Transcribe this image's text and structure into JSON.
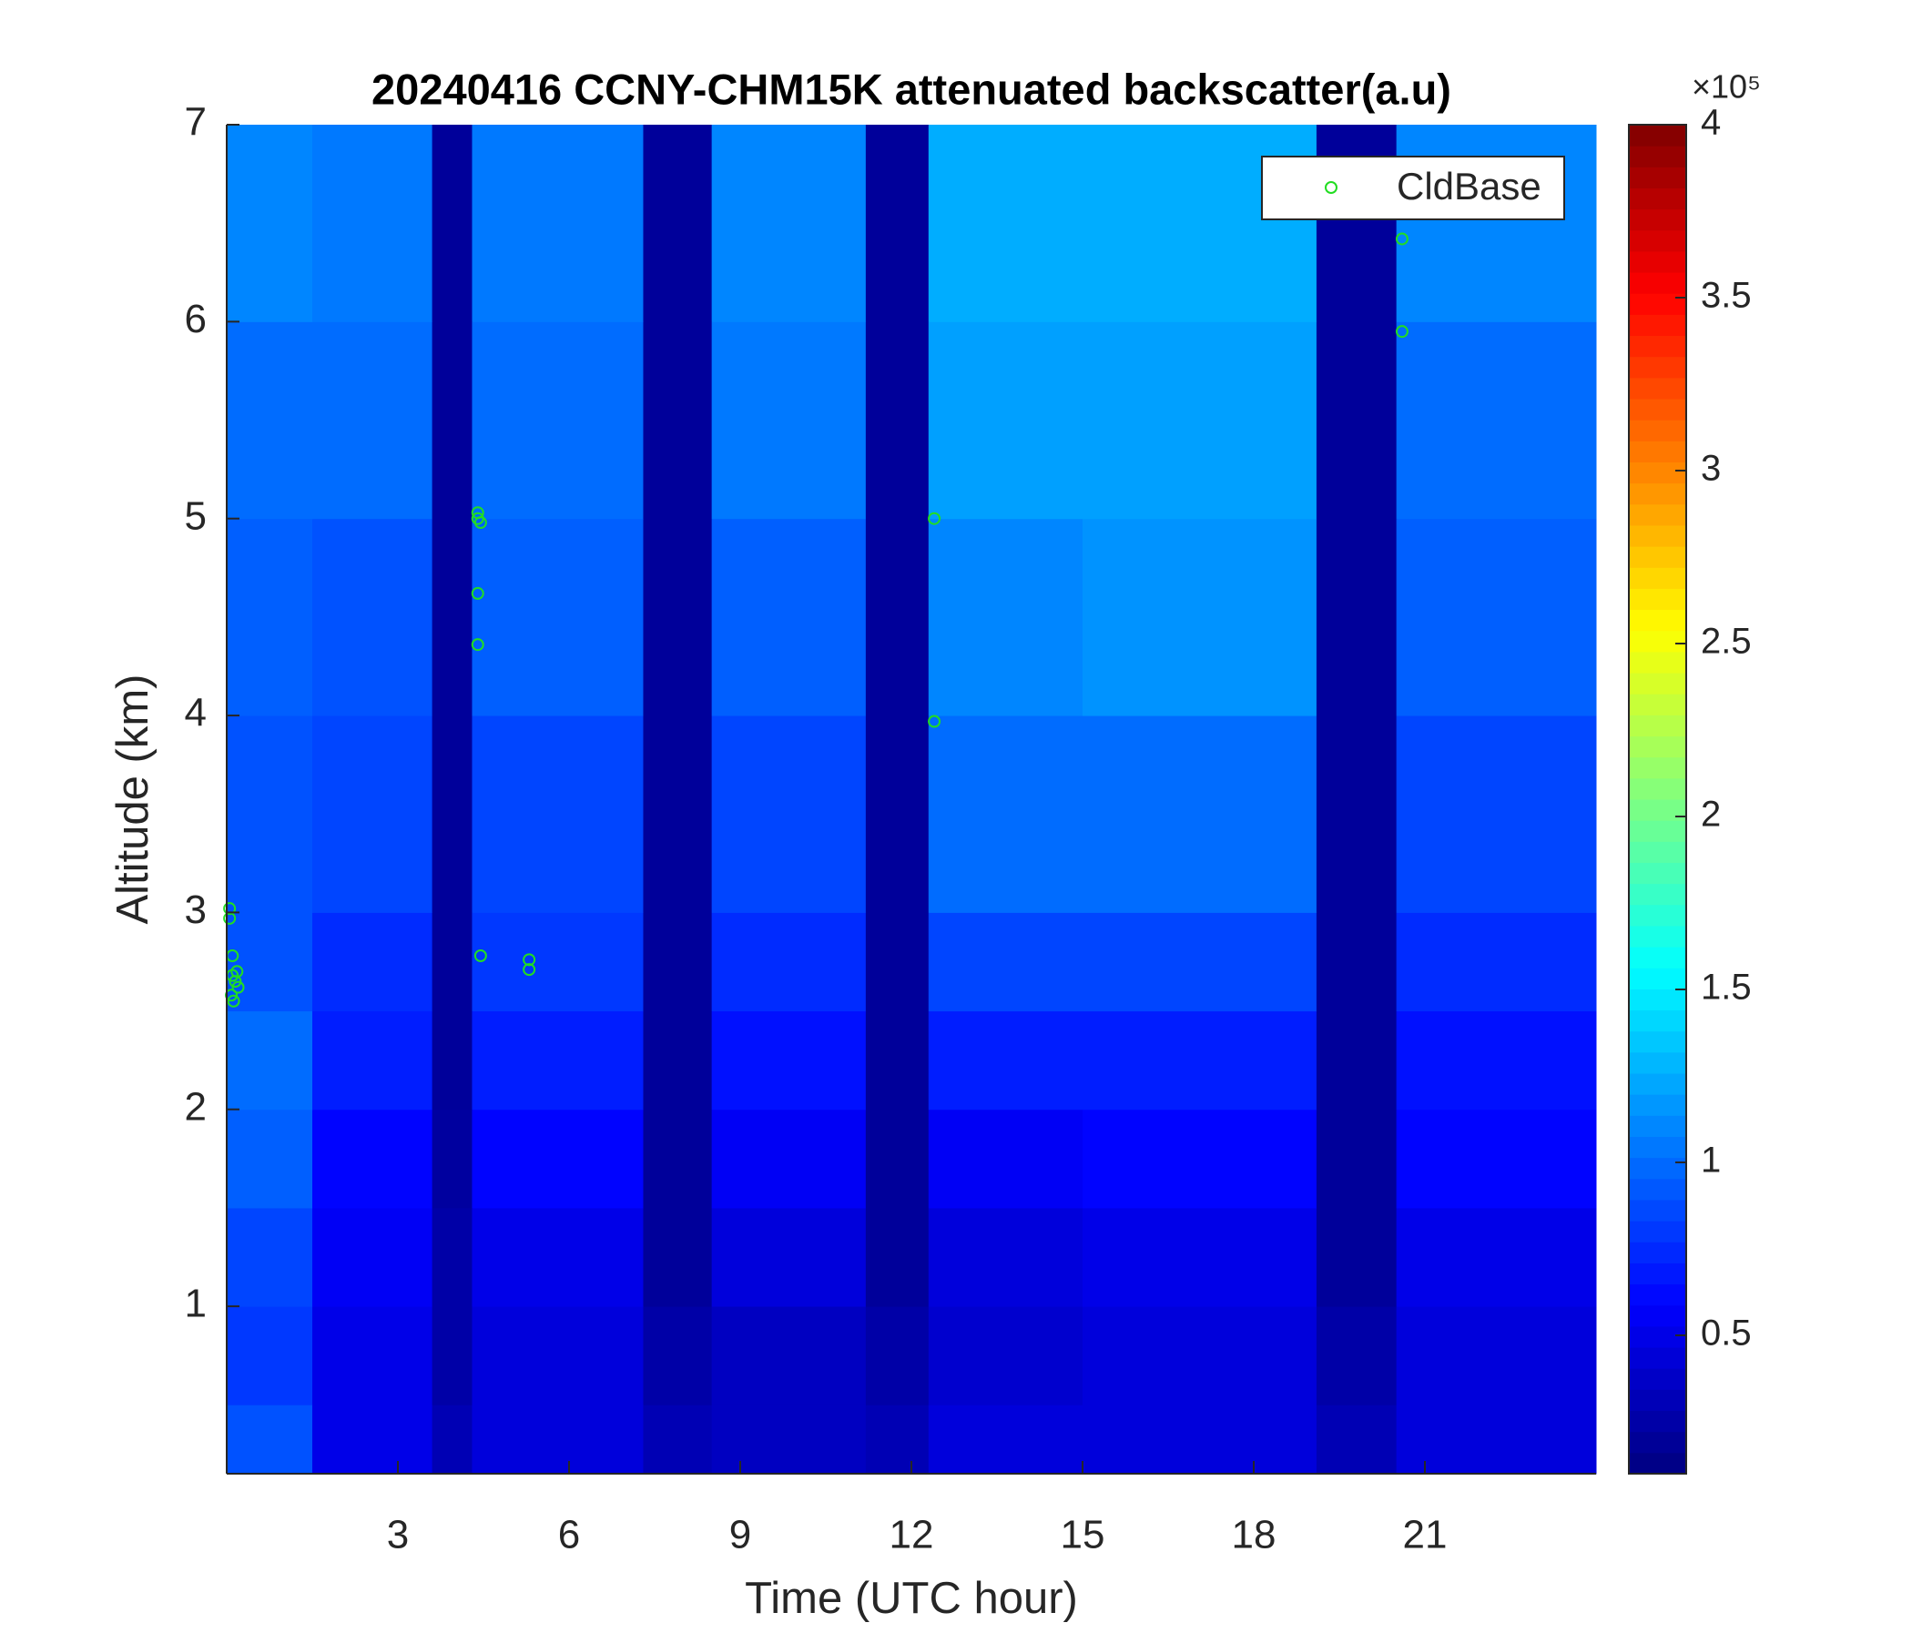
{
  "chart_data": {
    "type": "heatmap",
    "title": "20240416 CCNY-CHM15K attenuated backscatter(a.u)",
    "x_label": "Time (UTC hour)",
    "y_label": "Altitude (km)",
    "xlim": [
      0,
      24
    ],
    "xticks": [
      3,
      6,
      9,
      12,
      15,
      18,
      21
    ],
    "ylim": [
      0.15,
      7
    ],
    "yticks": [
      1,
      2,
      3,
      4,
      5,
      6,
      7
    ],
    "colormap": "jet",
    "clim": [
      0.1,
      4
    ],
    "cticks": [
      0.5,
      1,
      1.5,
      2,
      2.5,
      3,
      3.5,
      4
    ],
    "color_exponent_label": "×10⁵",
    "x_edges": [
      0,
      1.5,
      3.6,
      4.3,
      7.3,
      8.5,
      11.2,
      12.3,
      15,
      19.1,
      20.5,
      24
    ],
    "y_edges": [
      0.15,
      0.5,
      1,
      1.5,
      2,
      2.5,
      3,
      4,
      5,
      6,
      7
    ],
    "z": [
      [
        0.9,
        0.5,
        0.3,
        0.45,
        0.3,
        0.35,
        0.3,
        0.45,
        0.45,
        0.3,
        0.45
      ],
      [
        0.8,
        0.5,
        0.25,
        0.45,
        0.25,
        0.35,
        0.25,
        0.4,
        0.45,
        0.25,
        0.45
      ],
      [
        0.85,
        0.55,
        0.25,
        0.5,
        0.2,
        0.45,
        0.2,
        0.45,
        0.5,
        0.2,
        0.5
      ],
      [
        0.95,
        0.6,
        0.22,
        0.6,
        0.2,
        0.55,
        0.2,
        0.55,
        0.6,
        0.2,
        0.6
      ],
      [
        1.0,
        0.7,
        0.2,
        0.7,
        0.2,
        0.65,
        0.2,
        0.7,
        0.7,
        0.2,
        0.65
      ],
      [
        0.9,
        0.75,
        0.2,
        0.8,
        0.2,
        0.75,
        0.2,
        0.85,
        0.85,
        0.2,
        0.75
      ],
      [
        0.9,
        0.85,
        0.2,
        0.85,
        0.2,
        0.85,
        0.2,
        1.0,
        1.0,
        0.2,
        0.85
      ],
      [
        0.95,
        0.9,
        0.2,
        0.95,
        0.2,
        0.95,
        0.2,
        1.1,
        1.15,
        0.2,
        0.95
      ],
      [
        1.0,
        1.0,
        0.2,
        1.0,
        0.2,
        1.05,
        0.2,
        1.2,
        1.2,
        0.2,
        1.0
      ],
      [
        1.1,
        1.05,
        0.2,
        1.05,
        0.2,
        1.1,
        0.2,
        1.25,
        1.25,
        0.2,
        1.1
      ]
    ],
    "series": [
      {
        "name": "CldBase",
        "color": "#22dd22",
        "x": [
          0.05,
          0.05,
          0.1,
          0.1,
          0.15,
          0.2,
          0.08,
          0.12,
          0.18,
          4.4,
          4.4,
          4.45,
          4.4,
          4.4,
          4.45,
          5.3,
          5.3,
          12.4,
          12.4,
          20.6,
          20.6
        ],
        "values": [
          3.02,
          2.97,
          2.78,
          2.68,
          2.65,
          2.62,
          2.58,
          2.55,
          2.7,
          5.03,
          5.0,
          4.98,
          4.62,
          4.36,
          2.78,
          2.76,
          2.71,
          5.0,
          3.97,
          6.42,
          5.95
        ]
      }
    ],
    "legend": "top-right"
  }
}
